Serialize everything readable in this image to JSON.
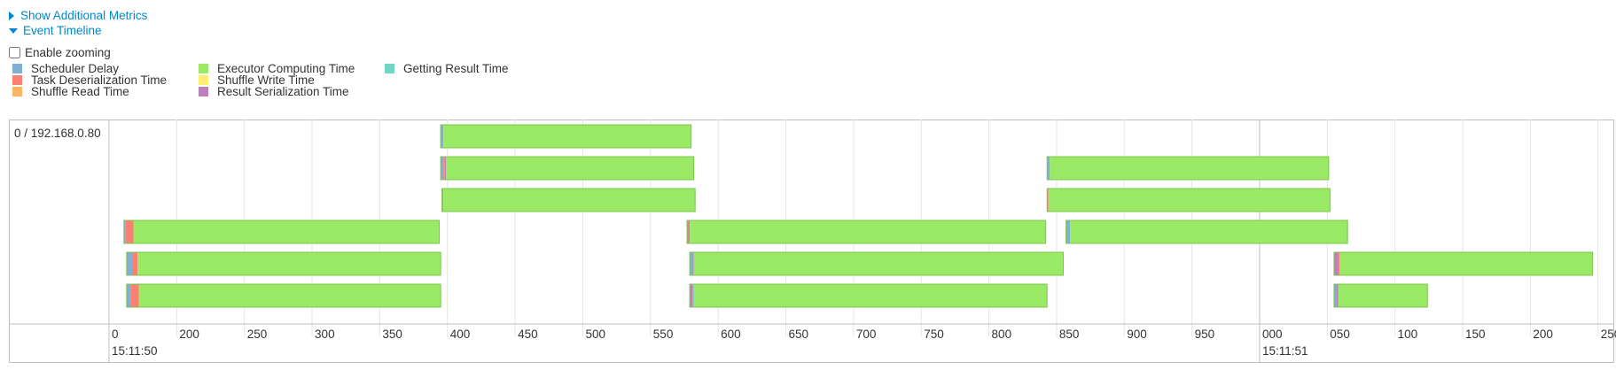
{
  "metrics_toggle": {
    "label": "Show Additional Metrics",
    "icon": "triangle-right-icon"
  },
  "timeline_toggle": {
    "label": "Event Timeline",
    "icon": "triangle-down-icon"
  },
  "zooming": {
    "label": "Enable zooming",
    "checked": false
  },
  "legend": [
    {
      "label": "Scheduler Delay",
      "color": "#80b1d3"
    },
    {
      "label": "Task Deserialization Time",
      "color": "#fb8072"
    },
    {
      "label": "Shuffle Read Time",
      "color": "#fdb462"
    },
    {
      "label": "Executor Computing Time",
      "color": "#9bea66"
    },
    {
      "label": "Shuffle Write Time",
      "color": "#ffed6f"
    },
    {
      "label": "Result Serialization Time",
      "color": "#bc80bd"
    },
    {
      "label": "Getting Result Time",
      "color": "#72d6c6"
    }
  ],
  "executor_label": "0 / 192.168.0.80",
  "axis": {
    "ticks": [
      "0",
      "200",
      "250",
      "300",
      "350",
      "400",
      "450",
      "500",
      "550",
      "600",
      "650",
      "700",
      "750",
      "800",
      "850",
      "900",
      "950",
      "000",
      "050",
      "100",
      "150",
      "200",
      "250"
    ],
    "major_labels": [
      "15:11:50",
      "15:11:51"
    ]
  },
  "tasks": [
    {
      "row": 0,
      "start": 395,
      "end": 580,
      "segments": [
        {
          "phase": "Scheduler Delay",
          "ms": 2
        }
      ]
    },
    {
      "row": 1,
      "start": 395,
      "end": 582,
      "segments": [
        {
          "phase": "Scheduler Delay",
          "ms": 2
        },
        {
          "phase": "Task Deserialization Time",
          "ms": 1
        },
        {
          "phase": "Result Serialization Time",
          "ms": 1
        }
      ]
    },
    {
      "row": 1,
      "start": 843,
      "end": 1051,
      "segments": [
        {
          "phase": "Scheduler Delay",
          "ms": 2
        }
      ]
    },
    {
      "row": 2,
      "start": 396,
      "end": 583,
      "segments": [
        {
          "phase": "Task Deserialization Time",
          "ms": 1
        }
      ]
    },
    {
      "row": 2,
      "start": 843,
      "end": 1052,
      "segments": [
        {
          "phase": "Task Deserialization Time",
          "ms": 1
        }
      ]
    },
    {
      "row": 3,
      "start": 161,
      "end": 394,
      "segments": [
        {
          "phase": "Scheduler Delay",
          "ms": 1
        },
        {
          "phase": "Task Deserialization Time",
          "ms": 6
        }
      ]
    },
    {
      "row": 3,
      "start": 577,
      "end": 842,
      "segments": [
        {
          "phase": "Task Deserialization Time",
          "ms": 1
        },
        {
          "phase": "Result Serialization Time",
          "ms": 1
        }
      ]
    },
    {
      "row": 3,
      "start": 857,
      "end": 1065,
      "segments": [
        {
          "phase": "Scheduler Delay",
          "ms": 3
        }
      ]
    },
    {
      "row": 4,
      "start": 163,
      "end": 395,
      "segments": [
        {
          "phase": "Scheduler Delay",
          "ms": 4
        },
        {
          "phase": "Task Deserialization Time",
          "ms": 4
        }
      ]
    },
    {
      "row": 4,
      "start": 579,
      "end": 855,
      "segments": [
        {
          "phase": "Scheduler Delay",
          "ms": 2
        },
        {
          "phase": "Result Serialization Time",
          "ms": 1
        }
      ]
    },
    {
      "row": 4,
      "start": 1055,
      "end": 1246,
      "segments": [
        {
          "phase": "Result Serialization Time",
          "ms": 3
        },
        {
          "phase": "Task Deserialization Time",
          "ms": 1
        }
      ]
    },
    {
      "row": 5,
      "start": 163,
      "end": 395,
      "segments": [
        {
          "phase": "Scheduler Delay",
          "ms": 3
        },
        {
          "phase": "Task Deserialization Time",
          "ms": 6
        }
      ]
    },
    {
      "row": 5,
      "start": 579,
      "end": 843,
      "segments": [
        {
          "phase": "Result Serialization Time",
          "ms": 2
        },
        {
          "phase": "Scheduler Delay",
          "ms": 1
        }
      ]
    },
    {
      "row": 5,
      "start": 1055,
      "end": 1124,
      "segments": [
        {
          "phase": "Scheduler Delay",
          "ms": 2
        },
        {
          "phase": "Result Serialization Time",
          "ms": 1
        }
      ]
    }
  ]
}
